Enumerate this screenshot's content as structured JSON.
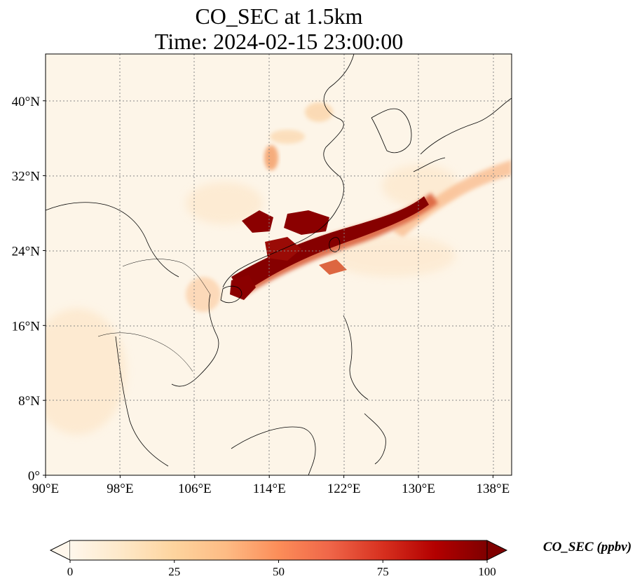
{
  "title": {
    "line1": "CO_SEC at 1.5km",
    "line2": "Time: 2024-02-15 23:00:00"
  },
  "map": {
    "projection": "PlateCarree",
    "lon_range": [
      90,
      140
    ],
    "lat_range": [
      0,
      45
    ],
    "gridlines": "dotted",
    "x_ticks": [
      {
        "value": 90,
        "label": "90°E"
      },
      {
        "value": 98,
        "label": "98°E"
      },
      {
        "value": 106,
        "label": "106°E"
      },
      {
        "value": 114,
        "label": "114°E"
      },
      {
        "value": 122,
        "label": "122°E"
      },
      {
        "value": 130,
        "label": "130°E"
      },
      {
        "value": 138,
        "label": "138°E"
      }
    ],
    "y_ticks": [
      {
        "value": 0,
        "label": "0°"
      },
      {
        "value": 8,
        "label": "8°N"
      },
      {
        "value": 16,
        "label": "16°N"
      },
      {
        "value": 24,
        "label": "24°N"
      },
      {
        "value": 32,
        "label": "32°N"
      },
      {
        "value": 40,
        "label": "40°N"
      }
    ],
    "colors": {
      "background_field": "#fdf5e8",
      "coastline": "#000000",
      "gridline": "#888888"
    }
  },
  "colorbar": {
    "label": "CO_SEC (ppbv)",
    "range": [
      0,
      100
    ],
    "extend": "both",
    "cmap": "OrRd",
    "ticks": [
      {
        "value": 0,
        "label": "0"
      },
      {
        "value": 25,
        "label": "25"
      },
      {
        "value": 50,
        "label": "50"
      },
      {
        "value": 75,
        "label": "75"
      },
      {
        "value": 100,
        "label": "100"
      }
    ],
    "colors": [
      "#fff7ec",
      "#fdd49e",
      "#fc8d59",
      "#d7301f",
      "#7f0000"
    ]
  }
}
